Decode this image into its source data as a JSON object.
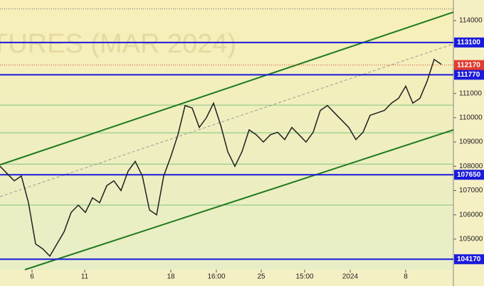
{
  "chart_data": {
    "type": "line",
    "watermark": "TURES (MAR 2024)",
    "x": [
      0,
      1,
      2,
      3,
      4,
      5,
      6,
      7,
      8,
      9,
      10,
      11,
      12,
      13,
      14,
      15,
      16,
      17,
      18,
      19,
      20,
      21,
      22,
      23,
      24,
      25,
      26,
      27,
      28,
      29,
      30,
      31,
      32,
      33,
      34,
      35,
      36,
      37,
      38,
      39,
      40,
      41,
      42,
      43,
      44,
      45,
      46,
      47,
      48,
      49,
      50,
      51,
      52,
      53,
      54,
      55,
      56,
      57,
      58,
      59,
      60,
      61,
      62
    ],
    "values": [
      108000,
      107700,
      107400,
      107600,
      106500,
      104800,
      104600,
      104300,
      104800,
      105300,
      106100,
      106400,
      106100,
      106700,
      106500,
      107200,
      107400,
      107000,
      107800,
      108200,
      107600,
      106200,
      106000,
      107600,
      108400,
      109300,
      110500,
      110400,
      109600,
      110000,
      110600,
      109700,
      108600,
      108000,
      108600,
      109500,
      109300,
      109000,
      109300,
      109400,
      109100,
      109600,
      109300,
      109000,
      109400,
      110300,
      110500,
      110200,
      109900,
      109600,
      109100,
      109400,
      110100,
      110200,
      110300,
      110600,
      110800,
      111300,
      110600,
      110800,
      111500,
      112400,
      112200
    ],
    "color": "#1f1f1f",
    "xlim": [
      0,
      63.7
    ],
    "ylim": [
      103740,
      114850
    ],
    "xticks": [
      {
        "value": 4.5,
        "label": "6"
      },
      {
        "value": 11.9,
        "label": "11"
      },
      {
        "value": 24,
        "label": "18"
      },
      {
        "value": 30.4,
        "label": "16:00"
      },
      {
        "value": 36.7,
        "label": "25"
      },
      {
        "value": 42.8,
        "label": "15:00"
      },
      {
        "value": 49.2,
        "label": "2024"
      },
      {
        "value": 57,
        "label": "8"
      }
    ],
    "yticks": [
      105000,
      106000,
      107000,
      108000,
      109000,
      110000,
      111000,
      112000,
      113000,
      114000
    ],
    "levels": {
      "values": [
        113100,
        111770,
        107650,
        104170
      ],
      "color": "#1a1adb"
    },
    "last_price": {
      "value": 112170,
      "color": "#e03c31"
    },
    "support_lines": {
      "values": [
        110520,
        109380,
        108090,
        106400
      ],
      "color": "#7cc47c"
    },
    "dotted_level": 114480,
    "channel": {
      "color": "#1e7a1e",
      "upper": {
        "x": [
          0,
          63.7
        ],
        "values": [
          108060,
          114350
        ]
      },
      "lower": {
        "x": [
          3.5,
          63.7
        ],
        "values": [
          103740,
          109500
        ]
      },
      "middle": {
        "x": [
          0,
          63.7
        ],
        "values": [
          106750,
          113040
        ]
      }
    }
  }
}
